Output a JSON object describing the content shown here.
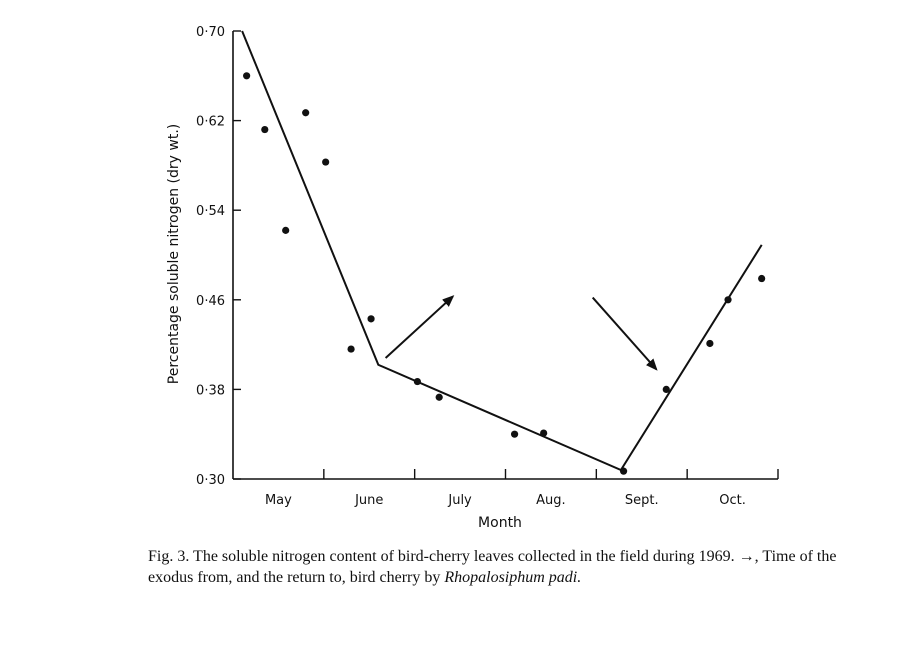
{
  "chart_data": {
    "type": "scatter",
    "xlabel": "Month",
    "ylabel": "Percentage soluble nitrogen (dry wt.)",
    "categories": [
      "May",
      "June",
      "July",
      "Aug.",
      "Sept.",
      "Oct."
    ],
    "y_ticks": [
      "0·30",
      "0·38",
      "0·46",
      "0·54",
      "0·62",
      "0·70"
    ],
    "ylim": [
      0.3,
      0.7
    ],
    "xlim": [
      0,
      6
    ],
    "grid": false,
    "series": [
      {
        "type": "scatter",
        "x": [
          0.15,
          0.35,
          0.58,
          0.8,
          1.02,
          1.3,
          1.52,
          2.03,
          2.27,
          3.1,
          3.42,
          4.3,
          4.77,
          5.25,
          5.45,
          5.82
        ],
        "y": [
          0.66,
          0.612,
          0.522,
          0.627,
          0.583,
          0.416,
          0.443,
          0.387,
          0.373,
          0.34,
          0.341,
          0.307,
          0.38,
          0.421,
          0.46,
          0.479
        ]
      },
      {
        "type": "line",
        "x": [
          0.1,
          1.6,
          4.27,
          5.82
        ],
        "y": [
          0.7,
          0.402,
          0.308,
          0.509
        ]
      }
    ],
    "annotations": [
      {
        "type": "arrow",
        "meaning": "exodus",
        "from": [
          1.68,
          0.408
        ],
        "to": [
          2.42,
          0.463
        ]
      },
      {
        "type": "arrow",
        "meaning": "return",
        "from": [
          3.96,
          0.462
        ],
        "to": [
          4.66,
          0.398
        ]
      }
    ]
  },
  "caption": {
    "text": "Fig. 3. The soluble nitrogen content of bird-cherry leaves collected in the field during 1969. →, Time of the exodus from, and the return to, bird cherry by",
    "species": "Rhopalosiphum padi."
  }
}
